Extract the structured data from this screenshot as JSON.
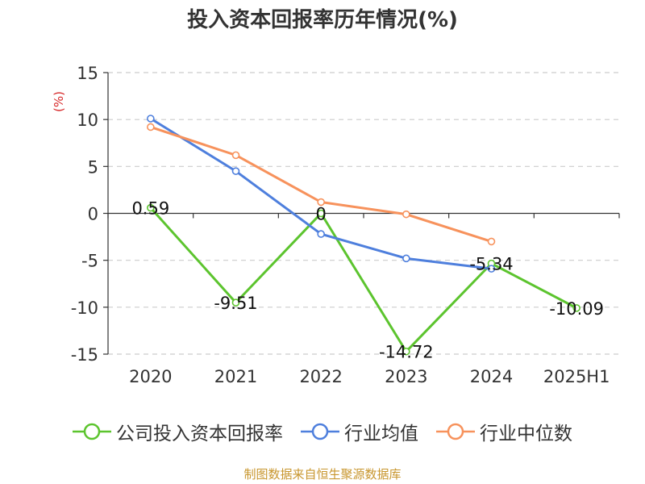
{
  "chart_data": {
    "type": "line",
    "title": "投入资本回报率历年情况(%)",
    "ylabel": "(%)",
    "xlabel": "",
    "categories": [
      "2020",
      "2021",
      "2022",
      "2023",
      "2024",
      "2025H1"
    ],
    "ylim": [
      -15,
      15
    ],
    "yticks": [
      15,
      10,
      5,
      0,
      -5,
      -10,
      -15
    ],
    "grid": true,
    "legend_position": "bottom",
    "series": [
      {
        "name": "公司投入资本回报率",
        "color": "#5cc42e",
        "values": [
          0.59,
          -9.51,
          0,
          -14.72,
          -5.34,
          -10.09
        ],
        "data_labels": [
          "0.59",
          "-9.51",
          "0",
          "-14.72",
          "-5.34",
          "-10.09"
        ]
      },
      {
        "name": "行业均值",
        "color": "#4e7fdd",
        "values": [
          10.1,
          4.5,
          -2.2,
          -4.8,
          -5.9,
          null
        ]
      },
      {
        "name": "行业中位数",
        "color": "#f7925c",
        "values": [
          9.2,
          6.2,
          1.2,
          -0.1,
          -3.0,
          null
        ]
      }
    ]
  },
  "footer": {
    "source": "制图数据来自恒生聚源数据库"
  }
}
